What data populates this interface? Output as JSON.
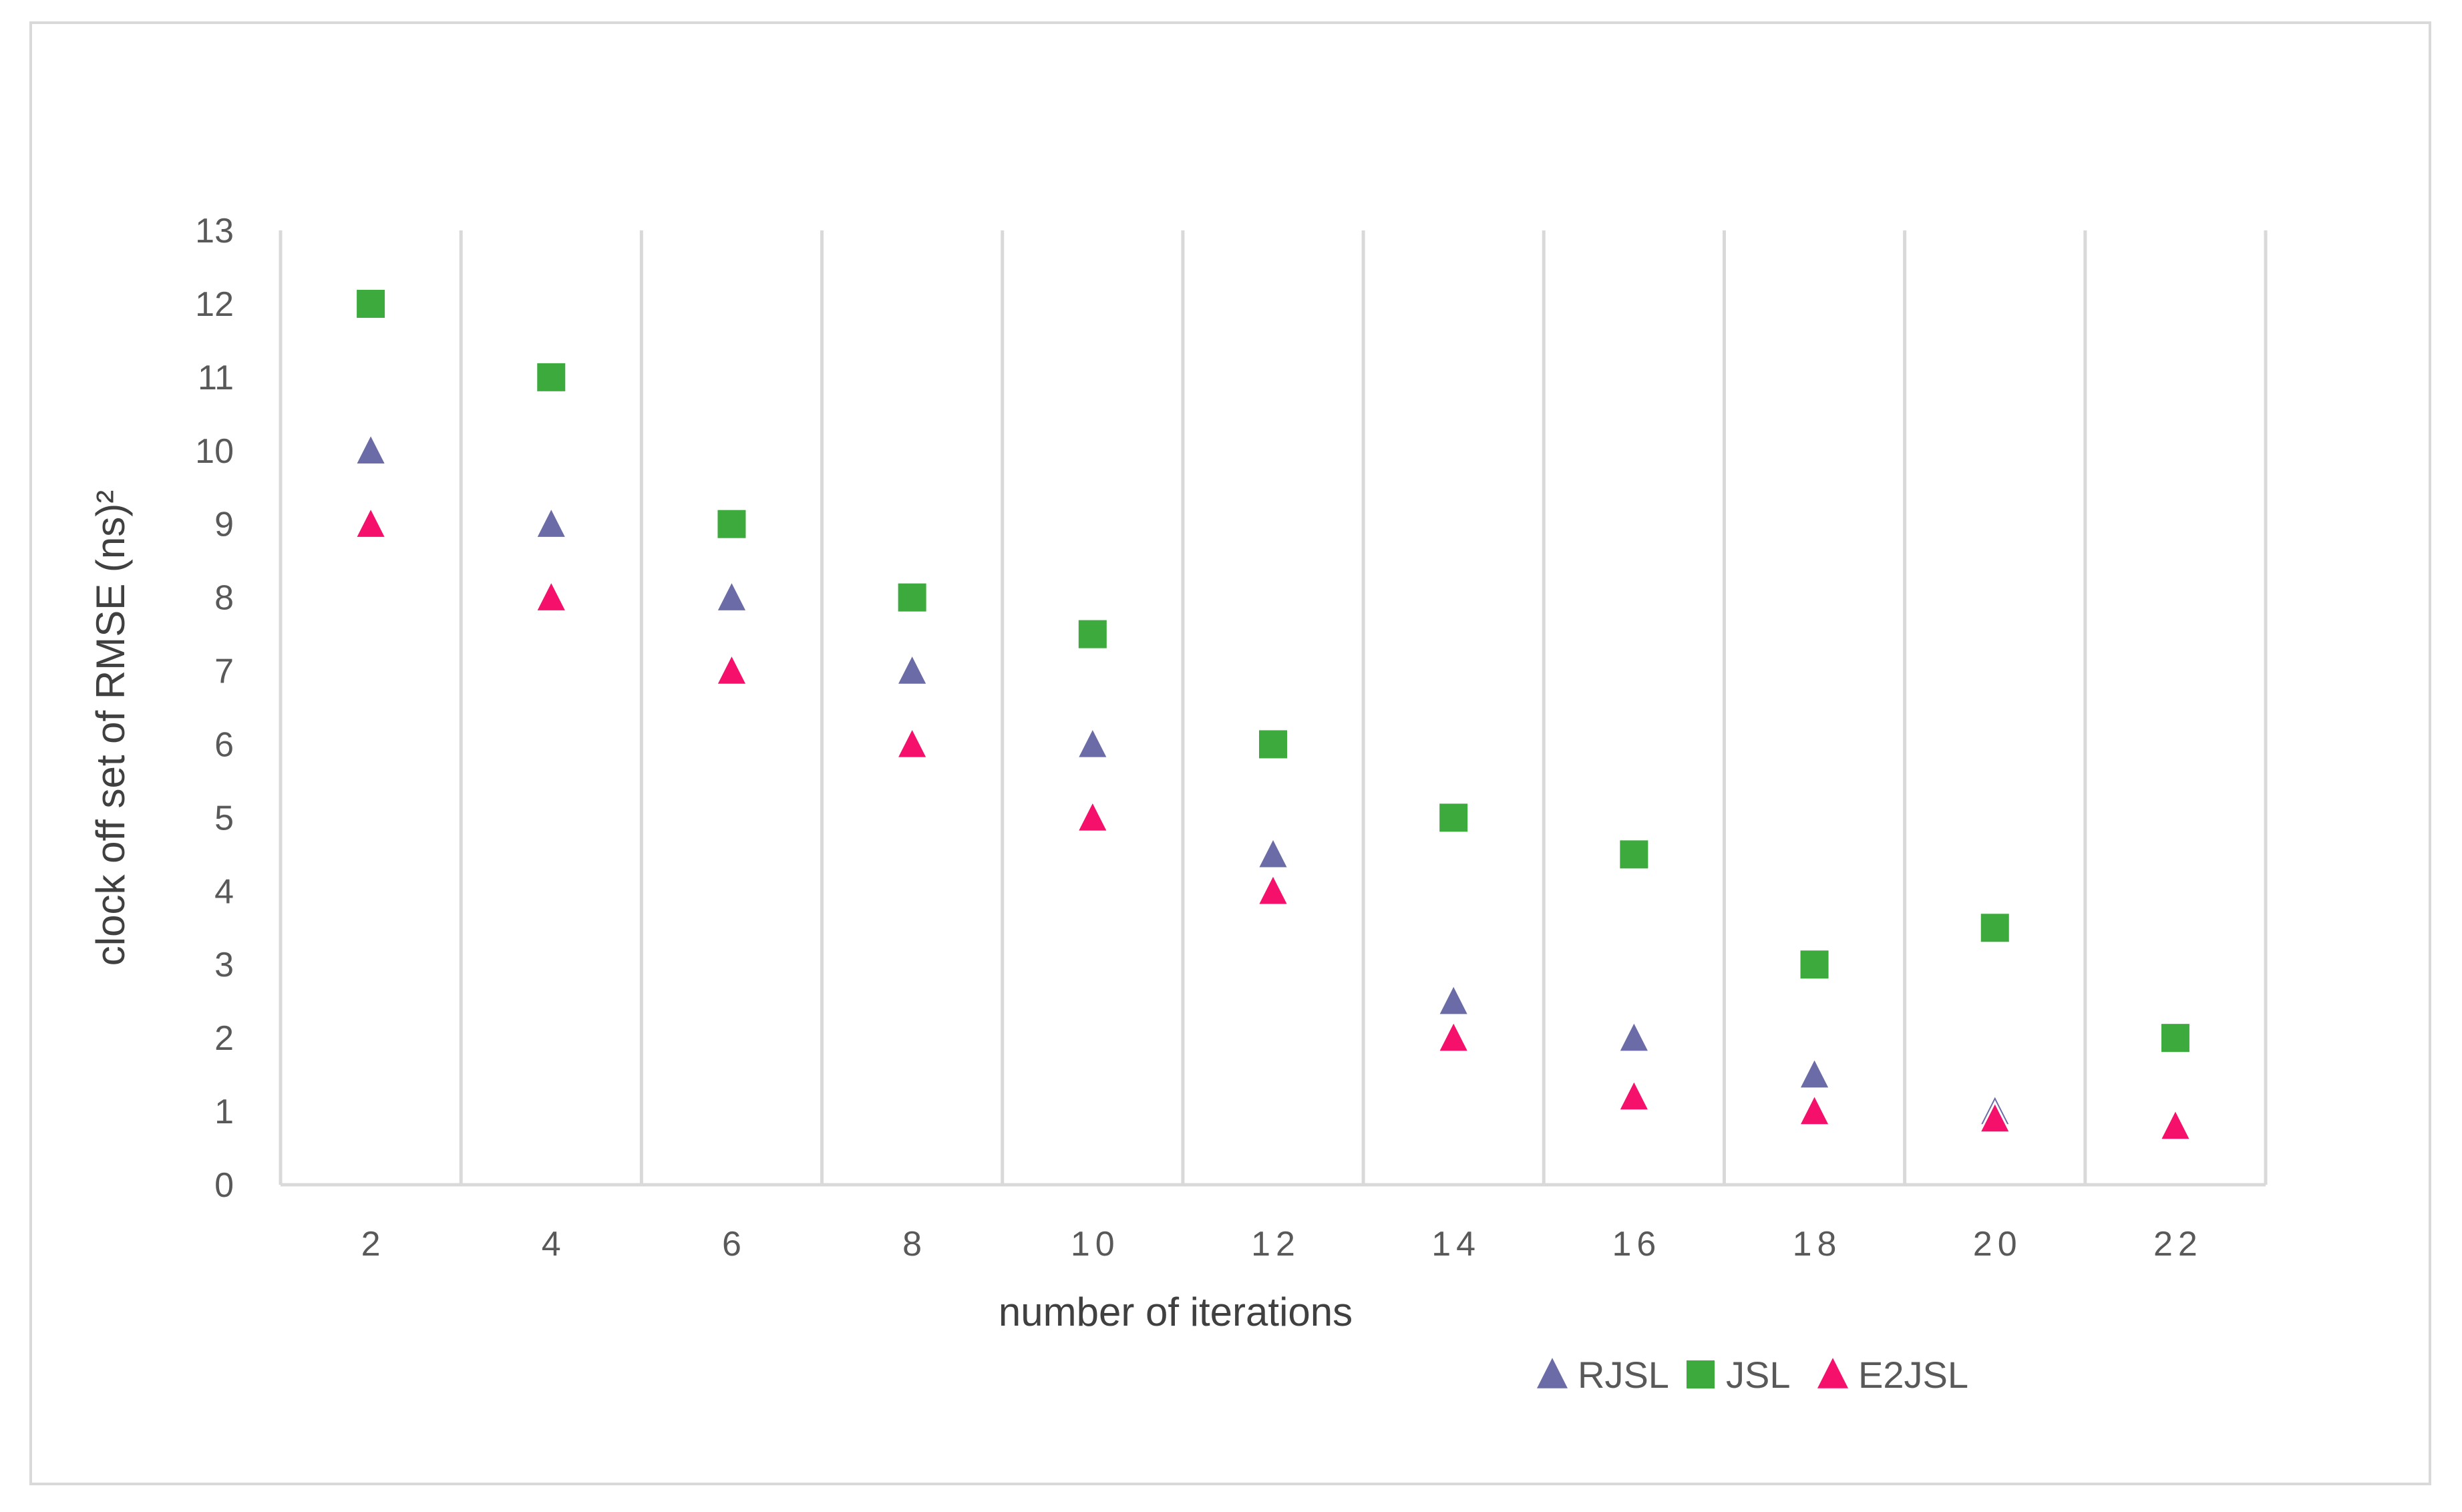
{
  "chart_data": {
    "type": "scatter",
    "title": "",
    "xlabel": "number of iterations",
    "ylabel": "clock off set of RMSE (ns)²",
    "x": [
      2,
      4,
      6,
      8,
      10,
      12,
      14,
      16,
      18,
      20,
      22
    ],
    "x_tick_labels": [
      "2",
      "4",
      "6",
      "8",
      "10",
      "12",
      "14",
      "16",
      "18",
      "20",
      "22"
    ],
    "y_tick_labels": [
      "0",
      "1",
      "2",
      "3",
      "4",
      "5",
      "6",
      "7",
      "8",
      "9",
      "10",
      "11",
      "12",
      "13"
    ],
    "ylim": [
      0,
      13
    ],
    "grid": "vertical",
    "legend_position": "bottom-right",
    "series": [
      {
        "name": "RJSL",
        "marker": "triangle",
        "color": "#6b6ba8",
        "values": [
          10,
          9,
          8,
          7,
          6,
          4.5,
          2.5,
          2,
          1.5,
          1,
          null
        ]
      },
      {
        "name": "JSL",
        "marker": "square",
        "color": "#3daa3d",
        "values": [
          12,
          11,
          9,
          8,
          7.5,
          6,
          5,
          4.5,
          3,
          3.5,
          2
        ]
      },
      {
        "name": "E2JSL",
        "marker": "triangle",
        "color": "#f5106b",
        "values": [
          9,
          8,
          7,
          6,
          5,
          4,
          2,
          1.2,
          1,
          0.9,
          0.8
        ]
      }
    ]
  }
}
